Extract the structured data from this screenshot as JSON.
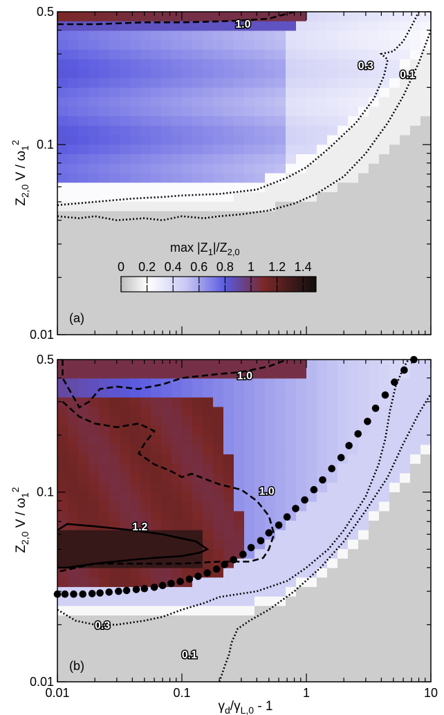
{
  "chart_data": {
    "type": "heatmap",
    "x_scale": "log",
    "y_scale": "log",
    "xlim": [
      0.01,
      10
    ],
    "ylim": [
      0.01,
      0.5
    ],
    "xlabel": {
      "base": "γ",
      "sub1": "d",
      "mid": "/γ",
      "sub2": "L,0",
      "tail": " - 1"
    },
    "ylabel": {
      "base": "Z",
      "sub1": "2,0",
      "mid": " V / ω",
      "sub2": "1",
      "sup": "2"
    },
    "x_tick_labels": [
      "0.01",
      "0.1",
      "1",
      "10"
    ],
    "x_tick_values": [
      0.01,
      0.1,
      1,
      10
    ],
    "y_tick_labels": [
      "0.01",
      "0.1",
      "0.5"
    ],
    "y_tick_values": [
      0.01,
      0.1,
      0.5
    ],
    "colorbar": {
      "title": {
        "base": "max |Z",
        "sub1": "1",
        "mid": "|/Z",
        "sub2": "2,0"
      },
      "tick_labels": [
        "0",
        "0.2",
        "0.4",
        "0.6",
        "0.8",
        "1",
        "1.2",
        "1.4"
      ],
      "range": [
        0,
        1.5
      ],
      "colors": [
        "#bcbcbc",
        "#ffffff",
        "#c8c8f4",
        "#5a5ae0",
        "#7a2828",
        "#0e0e0e"
      ],
      "color_stops": [
        0.0,
        0.2,
        0.5,
        0.8,
        1.1,
        1.5
      ]
    },
    "panels": [
      {
        "label": "(a)",
        "contours": [
          {
            "level": 1.0,
            "label": "1.0",
            "style": "dashed",
            "path": [
              [
                0.01,
                0.43
              ],
              [
                0.02,
                0.43
              ],
              [
                0.05,
                0.44
              ],
              [
                0.1,
                0.44
              ],
              [
                0.2,
                0.445
              ],
              [
                0.3,
                0.45
              ],
              [
                0.5,
                0.46
              ],
              [
                0.8,
                0.5
              ]
            ],
            "label_at": [
              0.31,
              0.434
            ]
          },
          {
            "level": 0.3,
            "label": "0.3",
            "style": "dotted",
            "path": [
              [
                0.01,
                0.048
              ],
              [
                0.02,
                0.05
              ],
              [
                0.04,
                0.052
              ],
              [
                0.07,
                0.053
              ],
              [
                0.1,
                0.054
              ],
              [
                0.2,
                0.055
              ],
              [
                0.4,
                0.058
              ],
              [
                0.7,
                0.067
              ],
              [
                1.0,
                0.076
              ],
              [
                1.5,
                0.095
              ],
              [
                2.5,
                0.13
              ],
              [
                3.5,
                0.175
              ],
              [
                4.2,
                0.23
              ],
              [
                4.5,
                0.28
              ],
              [
                4.0,
                0.3
              ],
              [
                5.0,
                0.31
              ],
              [
                6.0,
                0.35
              ],
              [
                7.0,
                0.42
              ],
              [
                8.0,
                0.5
              ]
            ],
            "label_at": [
              3.0,
              0.262
            ]
          },
          {
            "level": 0.1,
            "label": "0.1",
            "style": "dotted",
            "path": [
              [
                0.01,
                0.042
              ],
              [
                0.015,
                0.041
              ],
              [
                0.02,
                0.042
              ],
              [
                0.03,
                0.04
              ],
              [
                0.05,
                0.041
              ],
              [
                0.07,
                0.04
              ],
              [
                0.1,
                0.042
              ],
              [
                0.15,
                0.041
              ],
              [
                0.2,
                0.042
              ],
              [
                0.3,
                0.043
              ],
              [
                0.5,
                0.045
              ],
              [
                0.8,
                0.049
              ],
              [
                1.2,
                0.055
              ],
              [
                2.0,
                0.068
              ],
              [
                3.0,
                0.09
              ],
              [
                4.5,
                0.13
              ],
              [
                6.0,
                0.18
              ],
              [
                8.0,
                0.27
              ],
              [
                10.0,
                0.4
              ]
            ],
            "label_at": [
              6.5,
              0.235
            ]
          }
        ],
        "markers": []
      },
      {
        "label": "(b)",
        "contours": [
          {
            "level": 1.0,
            "label": "1.0",
            "style": "dashed",
            "path": [
              [
                0.011,
                0.5
              ],
              [
                0.011,
                0.4
              ],
              [
                0.013,
                0.33
              ],
              [
                0.015,
                0.28
              ],
              [
                0.018,
                0.3
              ],
              [
                0.022,
                0.35
              ],
              [
                0.03,
                0.36
              ],
              [
                0.045,
                0.35
              ],
              [
                0.07,
                0.37
              ],
              [
                0.1,
                0.4
              ],
              [
                0.2,
                0.42
              ],
              [
                0.3,
                0.43
              ],
              [
                0.5,
                0.46
              ],
              [
                0.7,
                0.5
              ]
            ],
            "label_at": [
              0.32,
              0.414
            ]
          },
          {
            "level": 1.0,
            "label": "1.0",
            "style": "dashed",
            "path": [
              [
                0.011,
                0.3
              ],
              [
                0.015,
                0.25
              ],
              [
                0.02,
                0.23
              ],
              [
                0.03,
                0.22
              ],
              [
                0.045,
                0.23
              ],
              [
                0.06,
                0.21
              ],
              [
                0.05,
                0.18
              ],
              [
                0.045,
                0.16
              ],
              [
                0.06,
                0.14
              ],
              [
                0.08,
                0.13
              ],
              [
                0.1,
                0.12
              ],
              [
                0.12,
                0.125
              ],
              [
                0.15,
                0.118
              ],
              [
                0.2,
                0.11
              ],
              [
                0.3,
                0.103
              ],
              [
                0.4,
                0.09
              ],
              [
                0.5,
                0.075
              ],
              [
                0.55,
                0.06
              ],
              [
                0.5,
                0.05
              ],
              [
                0.45,
                0.045
              ],
              [
                0.35,
                0.043
              ],
              [
                0.2,
                0.043
              ],
              [
                0.1,
                0.042
              ],
              [
                0.05,
                0.042
              ],
              [
                0.02,
                0.042
              ],
              [
                0.01,
                0.038
              ]
            ],
            "label_at": [
              0.48,
              0.102
            ]
          },
          {
            "level": 1.2,
            "label": "1.2",
            "style": "solid",
            "path": [
              [
                0.01,
                0.063
              ],
              [
                0.012,
                0.068
              ],
              [
                0.02,
                0.066
              ],
              [
                0.04,
                0.063
              ],
              [
                0.07,
                0.06
              ],
              [
                0.1,
                0.057
              ],
              [
                0.13,
                0.055
              ],
              [
                0.16,
                0.05
              ],
              [
                0.14,
                0.048
              ],
              [
                0.1,
                0.046
              ],
              [
                0.06,
                0.045
              ],
              [
                0.04,
                0.044
              ],
              [
                0.02,
                0.042
              ],
              [
                0.012,
                0.04
              ],
              [
                0.01,
                0.04
              ]
            ],
            "label_at": [
              0.046,
              0.066
            ]
          },
          {
            "level": 0.3,
            "label": "0.3",
            "style": "dotted",
            "path": [
              [
                0.01,
                0.024
              ],
              [
                0.014,
                0.021
              ],
              [
                0.02,
                0.02
              ],
              [
                0.03,
                0.02
              ],
              [
                0.05,
                0.021
              ],
              [
                0.07,
                0.022
              ],
              [
                0.1,
                0.024
              ],
              [
                0.15,
                0.026
              ],
              [
                0.2,
                0.028
              ],
              [
                0.4,
                0.03
              ],
              [
                0.7,
                0.034
              ],
              [
                1.0,
                0.04
              ],
              [
                1.5,
                0.05
              ],
              [
                2.0,
                0.063
              ],
              [
                3.0,
                0.095
              ],
              [
                3.8,
                0.14
              ],
              [
                4.3,
                0.19
              ],
              [
                4.7,
                0.27
              ],
              [
                5.2,
                0.36
              ],
              [
                6.0,
                0.45
              ],
              [
                6.6,
                0.5
              ]
            ],
            "label_at": [
              0.023,
              0.02
            ]
          },
          {
            "level": 0.1,
            "label": "0.1",
            "style": "dotted",
            "path": [
              [
                0.2,
                0.01
              ],
              [
                0.22,
                0.012
              ],
              [
                0.24,
                0.014
              ],
              [
                0.25,
                0.016
              ],
              [
                0.28,
                0.019
              ],
              [
                0.35,
                0.021
              ],
              [
                0.5,
                0.024
              ],
              [
                0.8,
                0.03
              ],
              [
                1.3,
                0.04
              ],
              [
                2.0,
                0.055
              ],
              [
                3.0,
                0.08
              ],
              [
                4.5,
                0.12
              ],
              [
                6.0,
                0.18
              ],
              [
                8.0,
                0.26
              ],
              [
                10.0,
                0.33
              ]
            ],
            "label_at": [
              0.115,
              0.014
            ]
          }
        ],
        "markers": [
          {
            "name": "stability-boundary",
            "points": [
              [
                0.01,
                0.029
              ],
              [
                0.0115,
                0.029
              ],
              [
                0.0135,
                0.029
              ],
              [
                0.016,
                0.029
              ],
              [
                0.019,
                0.0292
              ],
              [
                0.022,
                0.0294
              ],
              [
                0.026,
                0.0297
              ],
              [
                0.031,
                0.03
              ],
              [
                0.036,
                0.0303
              ],
              [
                0.043,
                0.0307
              ],
              [
                0.05,
                0.031
              ],
              [
                0.06,
                0.0315
              ],
              [
                0.07,
                0.0322
              ],
              [
                0.082,
                0.033
              ],
              [
                0.097,
                0.0338
              ],
              [
                0.115,
                0.0348
              ],
              [
                0.135,
                0.036
              ],
              [
                0.16,
                0.0375
              ],
              [
                0.19,
                0.0393
              ],
              [
                0.22,
                0.0415
              ],
              [
                0.26,
                0.044
              ],
              [
                0.31,
                0.047
              ],
              [
                0.36,
                0.051
              ],
              [
                0.43,
                0.0555
              ],
              [
                0.5,
                0.061
              ],
              [
                0.6,
                0.067
              ],
              [
                0.7,
                0.074
              ],
              [
                0.82,
                0.082
              ],
              [
                0.97,
                0.091
              ],
              [
                1.15,
                0.103
              ],
              [
                1.35,
                0.116
              ],
              [
                1.6,
                0.133
              ],
              [
                1.9,
                0.152
              ],
              [
                2.2,
                0.176
              ],
              [
                2.6,
                0.203
              ],
              [
                3.1,
                0.236
              ],
              [
                3.6,
                0.277
              ],
              [
                4.3,
                0.325
              ],
              [
                5.1,
                0.38
              ],
              [
                6.1,
                0.44
              ],
              [
                7.3,
                0.5
              ]
            ]
          }
        ]
      }
    ]
  }
}
